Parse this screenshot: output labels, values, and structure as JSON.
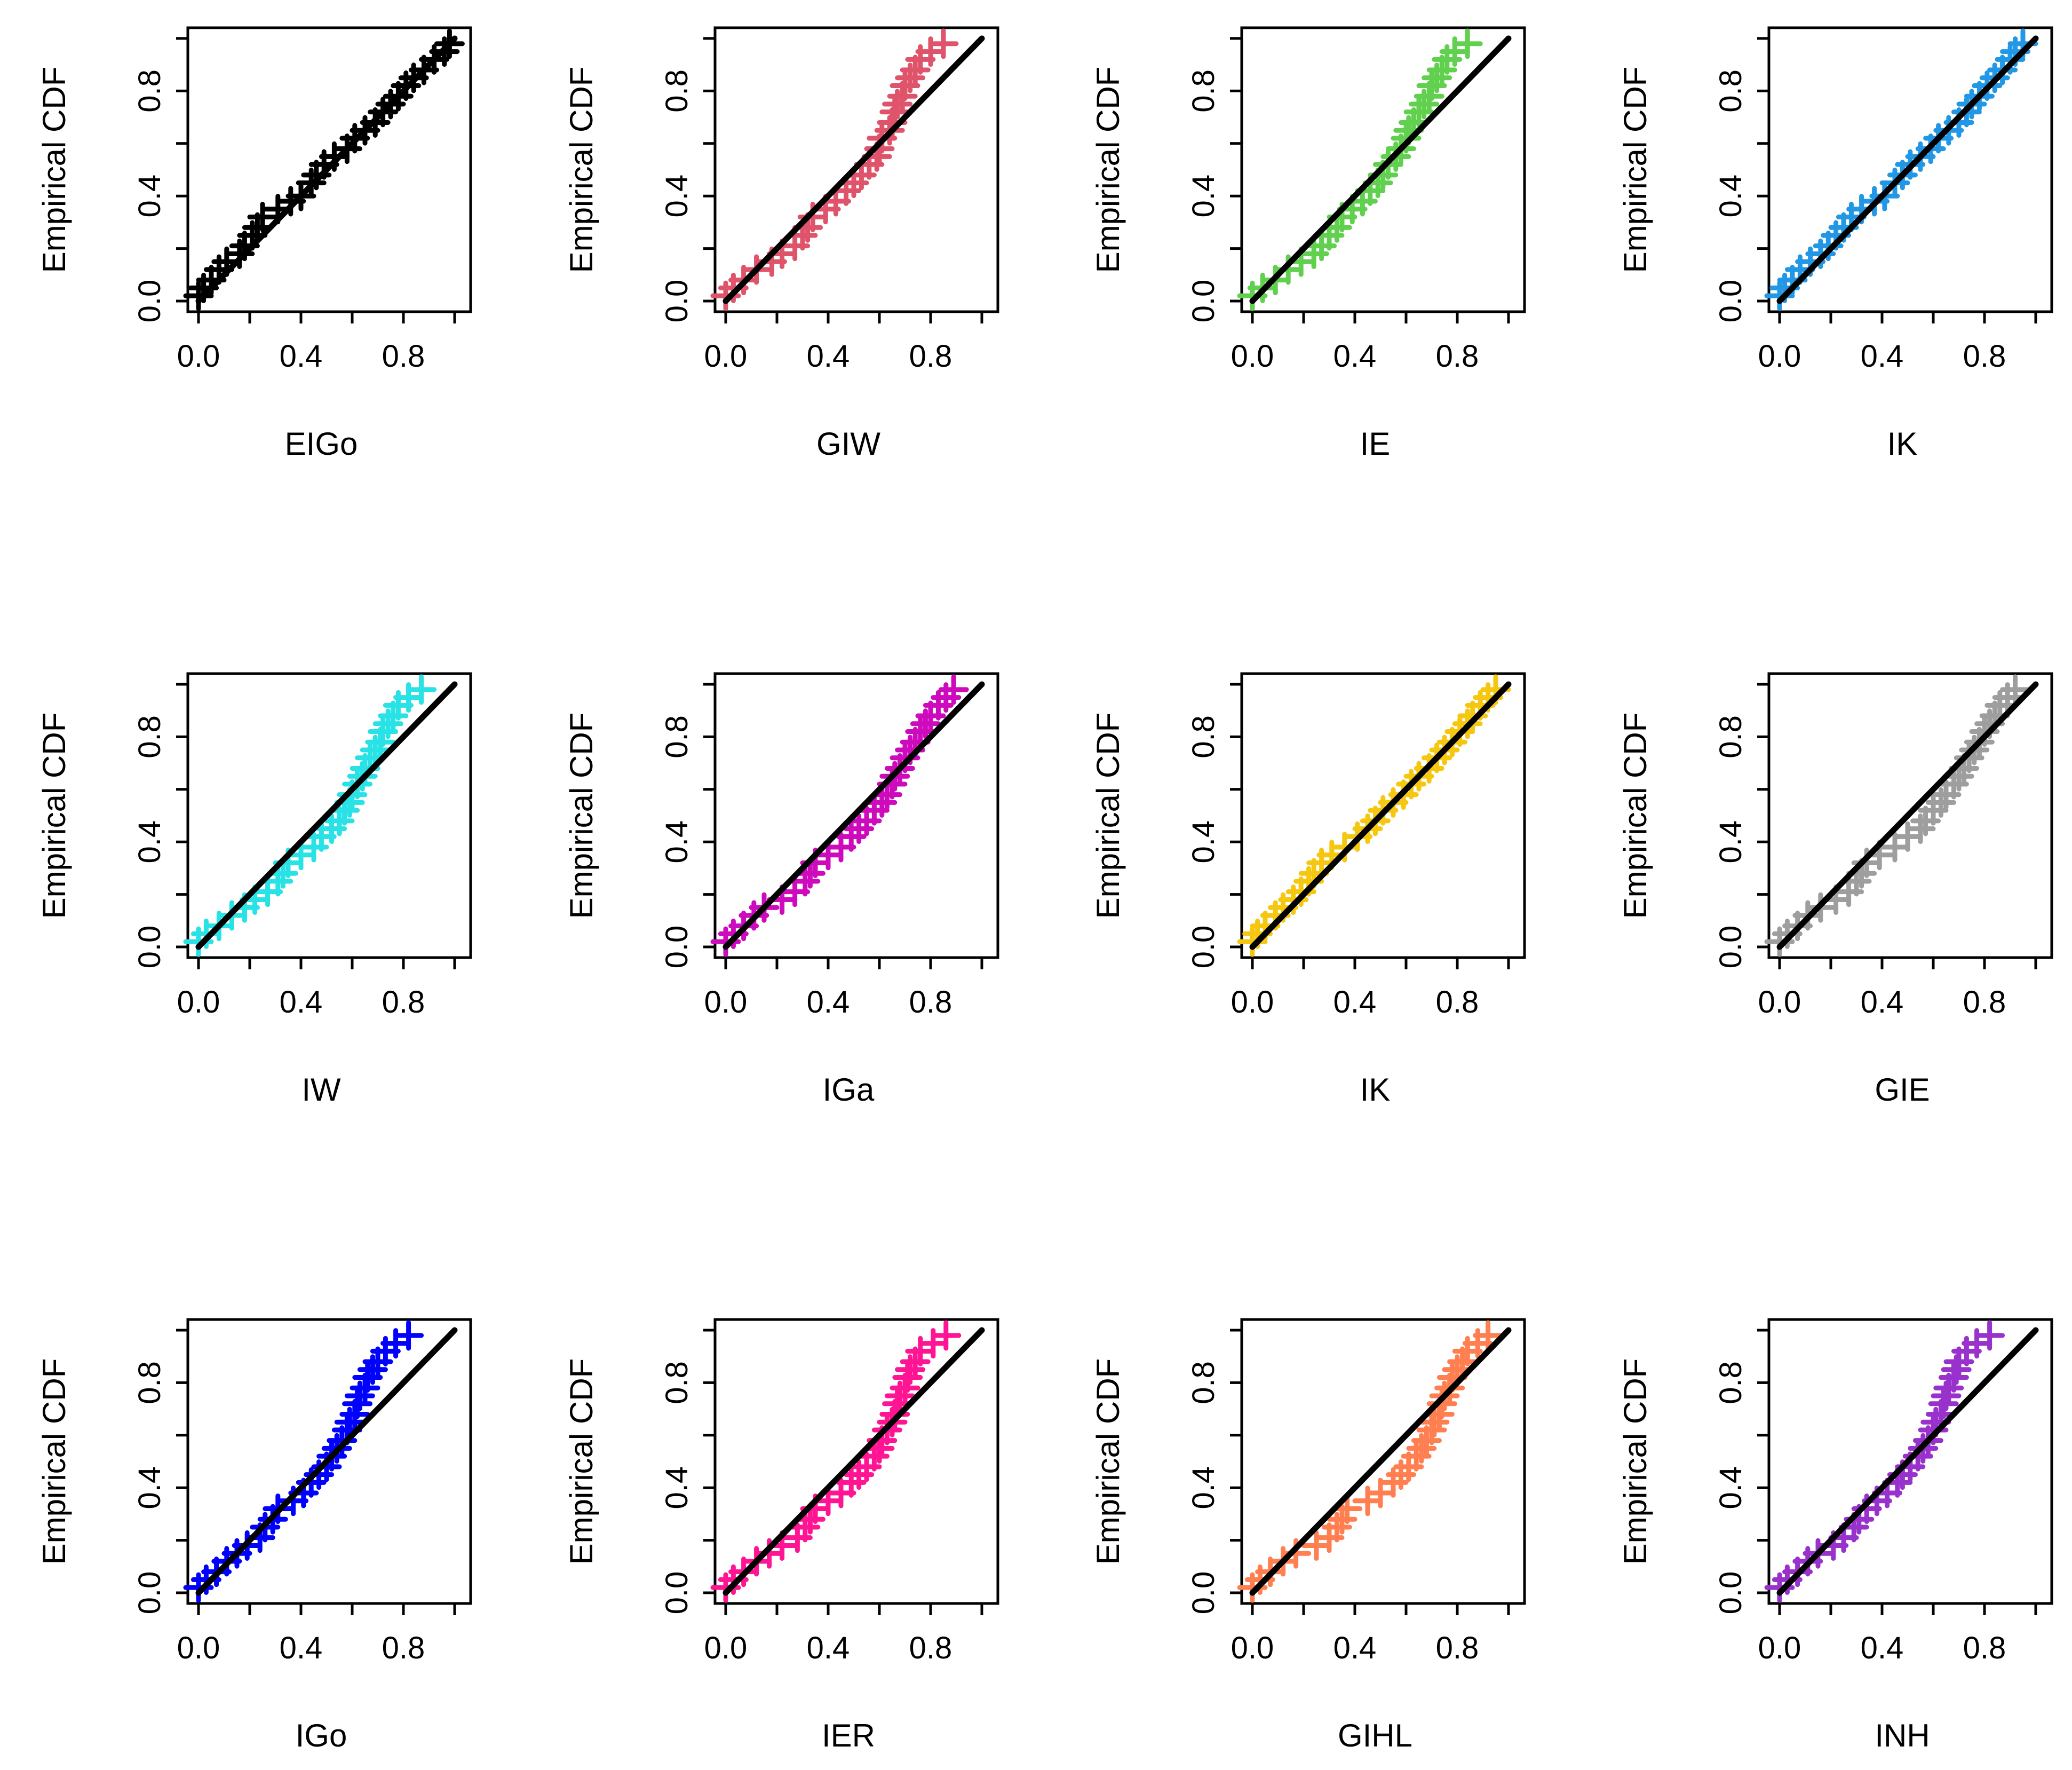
{
  "figure": {
    "ylabel": "Empirical CDF",
    "ylim": [
      0,
      1
    ],
    "xlim": [
      0,
      1
    ],
    "x_ticks": [
      0,
      0.2,
      0.4,
      0.6,
      0.8,
      1.0
    ],
    "x_tick_labels": [
      "0.0",
      "",
      "0.4",
      "",
      "0.8",
      ""
    ],
    "y_ticks": [
      0,
      0.2,
      0.4,
      0.6,
      0.8,
      1.0
    ],
    "y_tick_labels": [
      "0.0",
      "",
      "0.4",
      "",
      "0.8",
      ""
    ],
    "reference_line": {
      "from": [
        0,
        0
      ],
      "to": [
        1,
        1
      ],
      "color": "#000000"
    }
  },
  "chart_data": [
    {
      "type": "scatter",
      "xlabel": "EIGo",
      "color": "#000000",
      "x": [
        0.0,
        0.02,
        0.05,
        0.08,
        0.11,
        0.16,
        0.18,
        0.21,
        0.23,
        0.25,
        0.31,
        0.36,
        0.4,
        0.44,
        0.46,
        0.49,
        0.53,
        0.58,
        0.61,
        0.65,
        0.69,
        0.72,
        0.75,
        0.78,
        0.81,
        0.84,
        0.88,
        0.92,
        0.96,
        0.98
      ],
      "y": [
        0.02,
        0.05,
        0.08,
        0.12,
        0.15,
        0.18,
        0.21,
        0.25,
        0.28,
        0.32,
        0.35,
        0.38,
        0.4,
        0.45,
        0.48,
        0.52,
        0.55,
        0.58,
        0.62,
        0.65,
        0.68,
        0.72,
        0.75,
        0.78,
        0.82,
        0.85,
        0.88,
        0.92,
        0.95,
        0.98
      ]
    },
    {
      "type": "scatter",
      "xlabel": "GIW",
      "color": "#DF536B",
      "x": [
        0.0,
        0.03,
        0.07,
        0.12,
        0.18,
        0.22,
        0.27,
        0.3,
        0.32,
        0.34,
        0.39,
        0.43,
        0.47,
        0.5,
        0.53,
        0.56,
        0.59,
        0.6,
        0.61,
        0.64,
        0.65,
        0.66,
        0.67,
        0.69,
        0.7,
        0.72,
        0.74,
        0.76,
        0.8,
        0.85
      ],
      "y": [
        0.02,
        0.05,
        0.08,
        0.12,
        0.15,
        0.18,
        0.21,
        0.25,
        0.28,
        0.32,
        0.35,
        0.38,
        0.42,
        0.45,
        0.48,
        0.52,
        0.55,
        0.58,
        0.62,
        0.65,
        0.68,
        0.72,
        0.75,
        0.78,
        0.82,
        0.85,
        0.88,
        0.92,
        0.95,
        0.98
      ]
    },
    {
      "type": "scatter",
      "xlabel": "IE",
      "color": "#61D04F",
      "x": [
        0.0,
        0.04,
        0.09,
        0.14,
        0.19,
        0.24,
        0.27,
        0.3,
        0.33,
        0.35,
        0.39,
        0.43,
        0.46,
        0.49,
        0.51,
        0.53,
        0.56,
        0.58,
        0.6,
        0.61,
        0.63,
        0.65,
        0.67,
        0.69,
        0.7,
        0.72,
        0.74,
        0.76,
        0.79,
        0.84
      ],
      "y": [
        0.02,
        0.05,
        0.08,
        0.12,
        0.15,
        0.18,
        0.21,
        0.25,
        0.28,
        0.32,
        0.35,
        0.38,
        0.42,
        0.45,
        0.48,
        0.52,
        0.55,
        0.58,
        0.62,
        0.65,
        0.68,
        0.72,
        0.75,
        0.78,
        0.82,
        0.85,
        0.88,
        0.92,
        0.95,
        0.98
      ]
    },
    {
      "type": "scatter",
      "xlabel": "IK",
      "color": "#2297E6",
      "x": [
        0.0,
        0.02,
        0.05,
        0.08,
        0.12,
        0.16,
        0.19,
        0.22,
        0.25,
        0.28,
        0.32,
        0.37,
        0.41,
        0.45,
        0.48,
        0.51,
        0.55,
        0.59,
        0.62,
        0.66,
        0.7,
        0.73,
        0.75,
        0.78,
        0.81,
        0.84,
        0.87,
        0.9,
        0.92,
        0.95
      ],
      "y": [
        0.02,
        0.05,
        0.08,
        0.12,
        0.15,
        0.18,
        0.21,
        0.25,
        0.28,
        0.32,
        0.35,
        0.38,
        0.4,
        0.45,
        0.48,
        0.52,
        0.55,
        0.58,
        0.62,
        0.65,
        0.68,
        0.72,
        0.75,
        0.78,
        0.82,
        0.85,
        0.88,
        0.92,
        0.95,
        0.98
      ]
    },
    {
      "type": "scatter",
      "xlabel": "IW",
      "color": "#28E2E5",
      "x": [
        0.0,
        0.03,
        0.08,
        0.13,
        0.18,
        0.22,
        0.27,
        0.31,
        0.33,
        0.35,
        0.4,
        0.45,
        0.48,
        0.52,
        0.55,
        0.57,
        0.59,
        0.6,
        0.62,
        0.64,
        0.65,
        0.67,
        0.69,
        0.71,
        0.72,
        0.74,
        0.76,
        0.78,
        0.82,
        0.87
      ],
      "y": [
        0.02,
        0.05,
        0.08,
        0.12,
        0.15,
        0.18,
        0.21,
        0.25,
        0.28,
        0.32,
        0.35,
        0.38,
        0.42,
        0.45,
        0.48,
        0.52,
        0.55,
        0.58,
        0.62,
        0.65,
        0.68,
        0.72,
        0.75,
        0.78,
        0.82,
        0.85,
        0.88,
        0.92,
        0.95,
        0.98
      ]
    },
    {
      "type": "scatter",
      "xlabel": "IGa",
      "color": "#CD0BBC",
      "x": [
        0.0,
        0.03,
        0.07,
        0.11,
        0.15,
        0.22,
        0.27,
        0.31,
        0.33,
        0.35,
        0.4,
        0.45,
        0.49,
        0.52,
        0.55,
        0.58,
        0.61,
        0.63,
        0.65,
        0.66,
        0.68,
        0.7,
        0.72,
        0.74,
        0.76,
        0.78,
        0.8,
        0.83,
        0.86,
        0.89
      ],
      "y": [
        0.02,
        0.05,
        0.08,
        0.12,
        0.15,
        0.18,
        0.21,
        0.25,
        0.28,
        0.32,
        0.35,
        0.38,
        0.42,
        0.45,
        0.48,
        0.52,
        0.55,
        0.58,
        0.62,
        0.65,
        0.68,
        0.72,
        0.75,
        0.78,
        0.82,
        0.85,
        0.88,
        0.92,
        0.95,
        0.98
      ]
    },
    {
      "type": "scatter",
      "xlabel": "IK",
      "color": "#F5C710",
      "x": [
        0.0,
        0.02,
        0.05,
        0.09,
        0.12,
        0.16,
        0.19,
        0.22,
        0.24,
        0.27,
        0.31,
        0.36,
        0.41,
        0.45,
        0.48,
        0.51,
        0.55,
        0.59,
        0.62,
        0.65,
        0.69,
        0.72,
        0.75,
        0.78,
        0.81,
        0.84,
        0.86,
        0.89,
        0.92,
        0.95
      ],
      "y": [
        0.02,
        0.05,
        0.08,
        0.12,
        0.15,
        0.18,
        0.21,
        0.25,
        0.28,
        0.32,
        0.35,
        0.38,
        0.42,
        0.45,
        0.48,
        0.52,
        0.55,
        0.58,
        0.62,
        0.65,
        0.68,
        0.72,
        0.75,
        0.78,
        0.82,
        0.85,
        0.88,
        0.92,
        0.95,
        0.98
      ]
    },
    {
      "type": "scatter",
      "xlabel": "GIE",
      "color": "#9E9E9E",
      "x": [
        0.0,
        0.03,
        0.07,
        0.11,
        0.16,
        0.22,
        0.27,
        0.3,
        0.32,
        0.34,
        0.39,
        0.45,
        0.5,
        0.55,
        0.57,
        0.6,
        0.63,
        0.65,
        0.68,
        0.7,
        0.72,
        0.74,
        0.76,
        0.78,
        0.8,
        0.82,
        0.84,
        0.86,
        0.89,
        0.92
      ],
      "y": [
        0.02,
        0.05,
        0.08,
        0.12,
        0.15,
        0.18,
        0.21,
        0.25,
        0.28,
        0.32,
        0.35,
        0.38,
        0.42,
        0.45,
        0.48,
        0.52,
        0.55,
        0.58,
        0.62,
        0.65,
        0.68,
        0.72,
        0.75,
        0.78,
        0.82,
        0.85,
        0.88,
        0.92,
        0.95,
        0.98
      ]
    },
    {
      "type": "scatter",
      "xlabel": "IGo",
      "color": "#0000FF",
      "x": [
        0.0,
        0.03,
        0.07,
        0.11,
        0.15,
        0.19,
        0.24,
        0.26,
        0.29,
        0.31,
        0.37,
        0.41,
        0.44,
        0.47,
        0.5,
        0.52,
        0.54,
        0.56,
        0.58,
        0.59,
        0.61,
        0.62,
        0.63,
        0.65,
        0.66,
        0.68,
        0.7,
        0.73,
        0.77,
        0.82
      ],
      "y": [
        0.02,
        0.05,
        0.08,
        0.12,
        0.15,
        0.18,
        0.21,
        0.25,
        0.28,
        0.32,
        0.35,
        0.38,
        0.42,
        0.45,
        0.48,
        0.52,
        0.55,
        0.58,
        0.62,
        0.65,
        0.68,
        0.72,
        0.75,
        0.78,
        0.82,
        0.85,
        0.88,
        0.92,
        0.95,
        0.98
      ]
    },
    {
      "type": "scatter",
      "xlabel": "IER",
      "color": "#FF1493",
      "x": [
        0.0,
        0.03,
        0.07,
        0.12,
        0.17,
        0.22,
        0.28,
        0.31,
        0.33,
        0.35,
        0.4,
        0.45,
        0.49,
        0.52,
        0.55,
        0.58,
        0.6,
        0.61,
        0.63,
        0.65,
        0.66,
        0.67,
        0.68,
        0.7,
        0.71,
        0.72,
        0.74,
        0.76,
        0.81,
        0.86
      ],
      "y": [
        0.02,
        0.05,
        0.08,
        0.12,
        0.15,
        0.18,
        0.21,
        0.25,
        0.28,
        0.32,
        0.35,
        0.38,
        0.42,
        0.45,
        0.48,
        0.52,
        0.55,
        0.58,
        0.62,
        0.65,
        0.68,
        0.72,
        0.75,
        0.78,
        0.82,
        0.85,
        0.88,
        0.92,
        0.95,
        0.98
      ]
    },
    {
      "type": "scatter",
      "xlabel": "GIHL",
      "color": "#FF7F50",
      "x": [
        0.0,
        0.03,
        0.07,
        0.12,
        0.17,
        0.25,
        0.3,
        0.33,
        0.35,
        0.37,
        0.45,
        0.5,
        0.55,
        0.58,
        0.61,
        0.64,
        0.66,
        0.68,
        0.7,
        0.71,
        0.73,
        0.74,
        0.75,
        0.77,
        0.78,
        0.8,
        0.82,
        0.84,
        0.88,
        0.92
      ],
      "y": [
        0.02,
        0.05,
        0.08,
        0.12,
        0.15,
        0.18,
        0.21,
        0.25,
        0.28,
        0.32,
        0.35,
        0.38,
        0.42,
        0.45,
        0.48,
        0.52,
        0.55,
        0.58,
        0.62,
        0.65,
        0.68,
        0.72,
        0.75,
        0.78,
        0.82,
        0.85,
        0.88,
        0.92,
        0.95,
        0.98
      ]
    },
    {
      "type": "scatter",
      "xlabel": "INH",
      "color": "#9932CC",
      "x": [
        0.0,
        0.03,
        0.07,
        0.11,
        0.15,
        0.21,
        0.25,
        0.29,
        0.31,
        0.34,
        0.38,
        0.42,
        0.46,
        0.48,
        0.51,
        0.54,
        0.56,
        0.58,
        0.6,
        0.61,
        0.63,
        0.64,
        0.65,
        0.66,
        0.68,
        0.69,
        0.7,
        0.73,
        0.77,
        0.82
      ],
      "y": [
        0.02,
        0.05,
        0.08,
        0.12,
        0.15,
        0.18,
        0.21,
        0.25,
        0.28,
        0.32,
        0.35,
        0.38,
        0.42,
        0.45,
        0.48,
        0.52,
        0.55,
        0.58,
        0.62,
        0.65,
        0.68,
        0.72,
        0.75,
        0.78,
        0.82,
        0.85,
        0.88,
        0.92,
        0.95,
        0.98
      ]
    }
  ]
}
